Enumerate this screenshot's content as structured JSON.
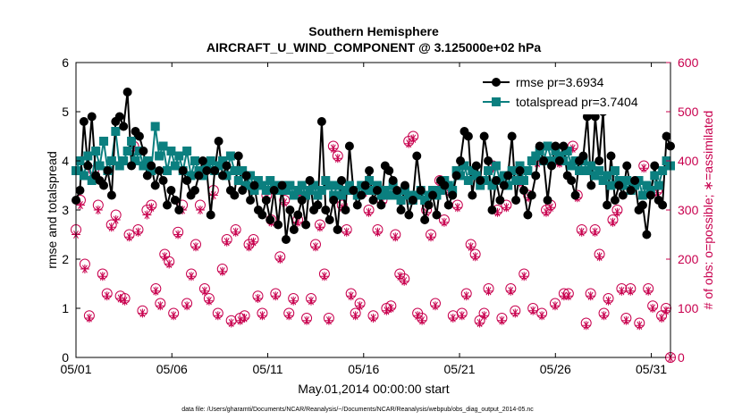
{
  "chart_data": {
    "type": "line",
    "title": [
      "Southern Hemisphere",
      "AIRCRAFT_U_WIND_COMPONENT @ 3.125000e+02 hPa"
    ],
    "xlabel": "May.01,2014 00:00:00 start",
    "ylabel_left": "rmse and totalspread",
    "ylabel_right": "# of obs: o=possible; ∗=assimilated",
    "footnote": "data file: /Users/gharamti/Documents/NCAR/Reanalysis/~/Documents/NCAR/Reanalysis/webpub/obs_diag_output_2014-05.nc",
    "x_ticks": [
      {
        "label": "05/01",
        "day": 0
      },
      {
        "label": "05/06",
        "day": 5
      },
      {
        "label": "05/11",
        "day": 10
      },
      {
        "label": "05/16",
        "day": 15
      },
      {
        "label": "05/21",
        "day": 20
      },
      {
        "label": "05/26",
        "day": 25
      },
      {
        "label": "05/31",
        "day": 30
      }
    ],
    "xlim_days": [
      0,
      31
    ],
    "y_left": {
      "ticks": [
        "0",
        "1",
        "2",
        "3",
        "4",
        "5",
        "6"
      ],
      "lim": [
        0,
        6
      ]
    },
    "y_right": {
      "ticks": [
        "0",
        "100",
        "200",
        "300",
        "400",
        "500",
        "600"
      ],
      "lim": [
        0,
        600
      ]
    },
    "grid": false,
    "legend_placement": "top-right",
    "legend": [
      {
        "label": "rmse pr=3.6934",
        "color": "#000000",
        "marker": "circle"
      },
      {
        "label": "totalspread pr=3.7404",
        "color": "#0b7f7f",
        "marker": "square"
      }
    ],
    "colors": {
      "rmse": "#000000",
      "totalspread": "#0b7f7f",
      "obs": "#c8004e"
    },
    "series": [
      {
        "key": "rmse",
        "axis": "left",
        "values": [
          3.2,
          3.4,
          4.8,
          3.9,
          4.9,
          3.7,
          3.6,
          3.5,
          3.8,
          3.3,
          4.8,
          4.9,
          4.7,
          5.4,
          3.9,
          4.6,
          4.5,
          4.2,
          3.7,
          3.9,
          3.5,
          3.8,
          3.6,
          3.1,
          3.4,
          3.2,
          3.0,
          3.8,
          3.6,
          3.3,
          3.4,
          3.7,
          4.0,
          3.8,
          2.9,
          3.8,
          4.4,
          3.7,
          3.9,
          3.4,
          3.3,
          4.1,
          3.4,
          3.7,
          3.2,
          3.5,
          3.0,
          2.9,
          3.2,
          2.8,
          3.4,
          2.7,
          3.5,
          2.4,
          3.0,
          2.6,
          2.9,
          3.2,
          2.7,
          3.6,
          3.0,
          3.1,
          4.8,
          3.0,
          2.8,
          3.2,
          2.6,
          3.6,
          3.0,
          4.3,
          3.4,
          3.1,
          3.3,
          3.5,
          3.8,
          3.2,
          3.4,
          3.1,
          3.9,
          3.8,
          3.6,
          3.4,
          3.0,
          3.5,
          2.9,
          3.2,
          4.1,
          3.4,
          2.8,
          3.1,
          3.3,
          2.9,
          3.6,
          3.5,
          3.1,
          3.3,
          3.7,
          4.0,
          4.6,
          4.5,
          3.3,
          3.9,
          3.6,
          4.5,
          4.0,
          3.0,
          3.6,
          3.2,
          3.5,
          3.7,
          4.5,
          3.2,
          3.8,
          3.4,
          2.9,
          3.3,
          3.7,
          4.3,
          4.0,
          3.2,
          3.9,
          4.3,
          4.0,
          4.3,
          3.7,
          3.6,
          3.3,
          4.0,
          4.1,
          4.9,
          3.5,
          4.9,
          4.0,
          5.0,
          3.1,
          4.1,
          3.2,
          3.5,
          3.3,
          3.9,
          3.4,
          3.6,
          3.0,
          3.1,
          2.5,
          3.3,
          3.9,
          3.2,
          3.1,
          4.5,
          4.3
        ]
      },
      {
        "key": "totalspread",
        "axis": "left",
        "values": [
          3.8,
          4.0,
          3.7,
          4.1,
          3.6,
          4.2,
          3.9,
          4.4,
          3.8,
          4.0,
          4.6,
          3.9,
          4.0,
          4.2,
          4.4,
          4.0,
          4.2,
          3.9,
          4.0,
          3.8,
          4.7,
          4.1,
          4.3,
          3.8,
          4.2,
          3.9,
          4.1,
          3.8,
          4.2,
          3.7,
          4.0,
          3.8,
          3.7,
          3.9,
          4.0,
          3.8,
          3.9,
          4.0,
          3.7,
          4.1,
          3.8,
          3.6,
          3.8,
          3.5,
          3.7,
          3.4,
          3.6,
          3.5,
          3.4,
          3.6,
          3.5,
          3.4,
          3.5,
          3.4,
          3.5,
          3.3,
          3.4,
          3.5,
          3.3,
          3.4,
          3.5,
          3.3,
          3.4,
          3.6,
          3.5,
          3.3,
          3.5,
          3.3,
          3.4,
          3.5,
          3.4,
          3.3,
          3.5,
          3.4,
          3.6,
          3.4,
          3.5,
          3.3,
          3.4,
          3.3,
          3.5,
          3.3,
          3.2,
          3.4,
          3.3,
          3.2,
          3.3,
          3.4,
          3.2,
          3.3,
          3.4,
          3.3,
          3.4,
          3.6,
          3.5,
          3.4,
          3.8,
          3.7,
          3.9,
          3.6,
          3.8,
          3.7,
          3.5,
          3.6,
          3.8,
          3.5,
          3.9,
          3.6,
          3.7,
          3.5,
          3.8,
          3.6,
          3.9,
          3.6,
          3.8,
          4.0,
          4.1,
          4.2,
          4.0,
          4.3,
          4.0,
          4.2,
          4.1,
          4.0,
          4.2,
          3.9,
          4.0,
          3.8,
          4.0,
          3.8,
          3.9,
          3.7,
          3.8,
          3.6,
          3.7,
          3.5,
          3.8,
          3.6,
          3.5,
          3.6,
          3.4,
          3.5,
          3.6,
          3.3,
          3.5,
          3.4,
          3.7,
          3.5,
          3.8,
          4.0,
          3.9
        ]
      },
      {
        "key": "obs_possible",
        "axis": "right",
        "values": [
          260,
          320,
          190,
          85,
          380,
          310,
          170,
          130,
          270,
          290,
          125,
          120,
          250,
          430,
          260,
          95,
          300,
          310,
          140,
          110,
          210,
          195,
          90,
          255,
          310,
          110,
          170,
          230,
          310,
          140,
          120,
          340,
          90,
          180,
          240,
          75,
          260,
          80,
          85,
          230,
          240,
          125,
          90,
          330,
          280,
          130,
          205,
          320,
          90,
          120,
          280,
          335,
          80,
          120,
          230,
          270,
          170,
          80,
          430,
          410,
          310,
          260,
          130,
          90,
          110,
          340,
          300,
          85,
          260,
          320,
          100,
          105,
          250,
          170,
          160,
          440,
          450,
          90,
          80,
          300,
          250,
          110,
          360,
          280,
          340,
          85,
          310,
          90,
          130,
          230,
          210,
          75,
          90,
          140,
          390,
          300,
          80,
          310,
          140,
          95,
          360,
          170,
          330,
          100,
          400,
          90,
          300,
          310,
          110,
          400,
          130,
          130,
          430,
          330,
          260,
          70,
          130,
          260,
          210,
          90,
          120,
          280,
          300,
          140,
          80,
          140,
          355,
          70,
          390,
          140,
          105,
          340,
          85,
          100,
          0
        ]
      },
      {
        "key": "obs_assimilated",
        "axis": "right",
        "values": [
          250,
          310,
          180,
          80,
          370,
          300,
          165,
          125,
          265,
          280,
          120,
          115,
          245,
          425,
          255,
          90,
          290,
          305,
          135,
          105,
          205,
          190,
          85,
          250,
          300,
          105,
          165,
          225,
          300,
          135,
          115,
          330,
          85,
          175,
          235,
          70,
          255,
          75,
          80,
          225,
          235,
          120,
          85,
          325,
          275,
          125,
          200,
          315,
          85,
          115,
          275,
          330,
          75,
          115,
          225,
          265,
          165,
          75,
          425,
          405,
          305,
          255,
          125,
          85,
          105,
          335,
          295,
          80,
          255,
          315,
          95,
          100,
          245,
          165,
          155,
          435,
          445,
          85,
          75,
          295,
          245,
          105,
          355,
          275,
          335,
          80,
          305,
          85,
          125,
          225,
          205,
          70,
          85,
          135,
          385,
          295,
          75,
          305,
          135,
          90,
          355,
          165,
          325,
          95,
          395,
          85,
          295,
          305,
          105,
          395,
          125,
          125,
          425,
          325,
          255,
          65,
          125,
          255,
          205,
          85,
          115,
          275,
          295,
          135,
          75,
          135,
          350,
          65,
          385,
          135,
          100,
          335,
          80,
          95,
          0
        ]
      }
    ]
  }
}
